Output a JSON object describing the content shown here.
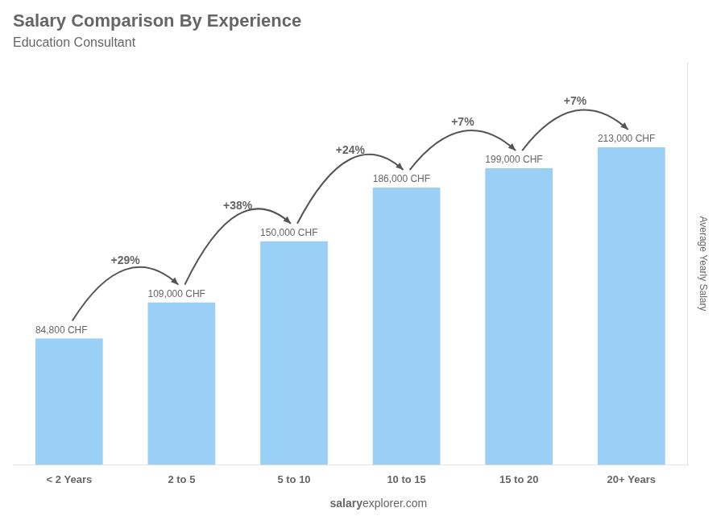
{
  "chart_data": {
    "type": "bar",
    "title": "Salary Comparison By Experience",
    "subtitle": "Education Consultant",
    "categories": [
      "< 2 Years",
      "2 to 5",
      "5 to 10",
      "10 to 15",
      "15 to 20",
      "20+ Years"
    ],
    "values": [
      84800,
      109000,
      150000,
      186000,
      199000,
      213000
    ],
    "value_labels": [
      "84,800 CHF",
      "109,000 CHF",
      "150,000 CHF",
      "186,000 CHF",
      "199,000 CHF",
      "213,000 CHF"
    ],
    "data_labels": true,
    "annotations": [
      null,
      "+29%",
      "+38%",
      "+24%",
      "+7%",
      "+7%"
    ],
    "ylabel": "Average Yearly Salary",
    "footer": [
      "salary",
      "explorer.com"
    ],
    "ylim": [
      0,
      270000
    ],
    "grid": false,
    "tick_labels": "x"
  }
}
